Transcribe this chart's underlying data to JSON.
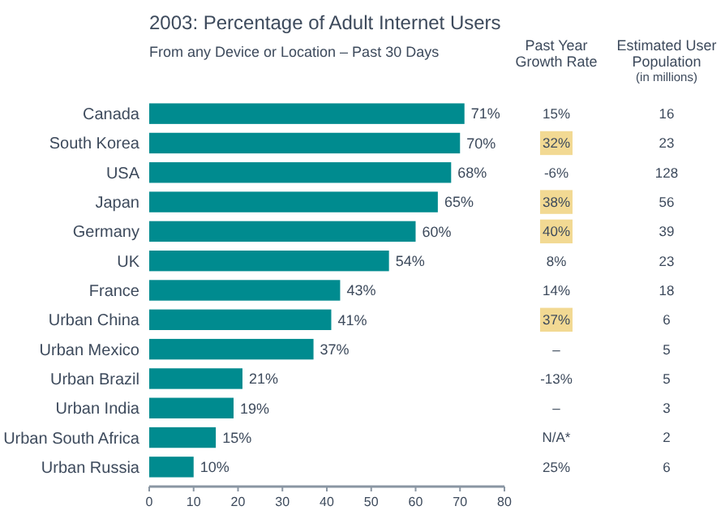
{
  "chart_data": [
    {
      "type": "bar",
      "orientation": "horizontal",
      "title": "2003: Percentage of Adult Internet Users",
      "subtitle": "From any Device or Location – Past 30 Days",
      "categories": [
        "Canada",
        "South Korea",
        "USA",
        "Japan",
        "Germany",
        "UK",
        "France",
        "Urban China",
        "Urban Mexico",
        "Urban Brazil",
        "Urban India",
        "Urban South Africa",
        "Urban Russia"
      ],
      "values": [
        71,
        70,
        68,
        65,
        60,
        54,
        43,
        41,
        37,
        21,
        19,
        15,
        10
      ],
      "value_labels": [
        "71%",
        "70%",
        "68%",
        "65%",
        "60%",
        "54%",
        "43%",
        "41%",
        "37%",
        "21%",
        "19%",
        "15%",
        "10%"
      ],
      "color": "#008b8f",
      "xlim": [
        0,
        80
      ],
      "xticks": [
        0,
        10,
        20,
        30,
        40,
        50,
        60,
        70,
        80
      ]
    },
    {
      "type": "other",
      "title": "Past Year Growth Rate",
      "values": [
        15,
        32,
        -6,
        38,
        40,
        8,
        14,
        37,
        null,
        -13,
        null,
        null,
        25
      ],
      "value_labels": [
        "15%",
        "32%",
        "-6%",
        "38%",
        "40%",
        "8%",
        "14%",
        "37%",
        "–",
        "-13%",
        "–",
        "N/A*",
        "25%"
      ],
      "colors": [
        null,
        "#f2d993",
        null,
        "#f2d993",
        "#f2d993",
        null,
        null,
        "#f2d993",
        null,
        null,
        null,
        null,
        null
      ]
    },
    {
      "type": "other",
      "title": "Estimated User Population",
      "subtitle": "(in millions)",
      "values": [
        16,
        23,
        128,
        56,
        39,
        23,
        18,
        6,
        5,
        5,
        3,
        2,
        6
      ],
      "data_labels": true
    }
  ]
}
